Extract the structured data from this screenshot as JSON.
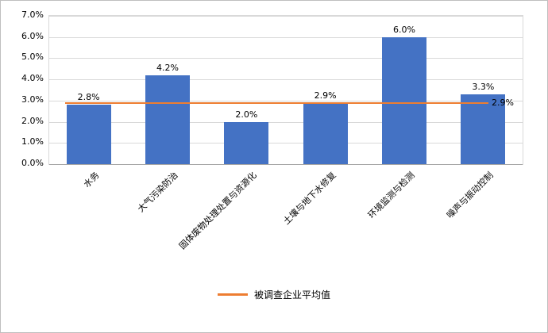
{
  "chart_data": {
    "type": "bar",
    "title": "",
    "categories": [
      "水务",
      "大气污染防治",
      "固体废物处理处置与资源化",
      "土壤与地下水修复",
      "环境监测与检测",
      "噪声与振动控制"
    ],
    "values": [
      2.8,
      4.2,
      2.0,
      2.9,
      6.0,
      3.3
    ],
    "data_labels": [
      "2.8%",
      "4.2%",
      "2.0%",
      "2.9%",
      "6.0%",
      "3.3%"
    ],
    "ylim": [
      0,
      7
    ],
    "ytick_step": 1,
    "ytick_labels": [
      "0.0%",
      "1.0%",
      "2.0%",
      "3.0%",
      "4.0%",
      "5.0%",
      "6.0%",
      "7.0%"
    ],
    "bar_color": "#4472C4",
    "grid": true,
    "legend_position": "bottom",
    "average_line": {
      "value": 2.9,
      "label": "2.9%",
      "name": "被调查企业平均值",
      "color": "#ED7D31"
    }
  }
}
